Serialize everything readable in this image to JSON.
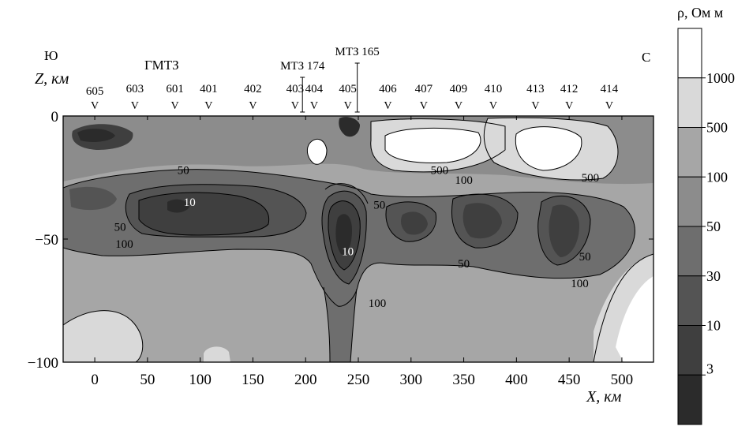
{
  "chart_data": {
    "type": "heatmap",
    "title": "",
    "xlabel": "X, км",
    "ylabel": "Z, км",
    "xlim": [
      -30,
      530
    ],
    "ylim": [
      -100,
      0
    ],
    "x_ticks": [
      0,
      50,
      100,
      150,
      200,
      250,
      300,
      350,
      400,
      450,
      500
    ],
    "y_ticks": [
      0,
      -50,
      -100
    ],
    "direction_left": "Ю",
    "direction_right": "С",
    "profile_label": "ГМТЗ",
    "stations": [
      {
        "label": "605",
        "x": 0
      },
      {
        "label": "603",
        "x": 38
      },
      {
        "label": "601",
        "x": 76
      },
      {
        "label": "401",
        "x": 108
      },
      {
        "label": "402",
        "x": 150
      },
      {
        "label": "403",
        "x": 190
      },
      {
        "label": "404",
        "x": 208
      },
      {
        "label": "405",
        "x": 240
      },
      {
        "label": "406",
        "x": 278
      },
      {
        "label": "407",
        "x": 312
      },
      {
        "label": "409",
        "x": 345
      },
      {
        "label": "410",
        "x": 378
      },
      {
        "label": "413",
        "x": 418
      },
      {
        "label": "412",
        "x": 450
      },
      {
        "label": "414",
        "x": 488
      }
    ],
    "special_stations": [
      {
        "label": "МТЗ 174",
        "x": 197
      },
      {
        "label": "МТЗ 165",
        "x": 249
      }
    ],
    "colorbar": {
      "title": "ρ, Ом м",
      "levels": [
        "3",
        "10",
        "30",
        "50",
        "100",
        "500",
        "1000"
      ],
      "colors": [
        "#2b2b2b",
        "#3f3f3f",
        "#545454",
        "#6e6e6e",
        "#8c8c8c",
        "#a6a6a6",
        "#d9d9d9",
        "#ffffff"
      ]
    },
    "contour_labels": [
      {
        "text": "10",
        "x": 90,
        "z": -35
      },
      {
        "text": "10",
        "x": 240,
        "z": -55
      },
      {
        "text": "50",
        "x": 84,
        "z": -22
      },
      {
        "text": "50",
        "x": 24,
        "z": -45
      },
      {
        "text": "100",
        "x": 28,
        "z": -52
      },
      {
        "text": "50",
        "x": 270,
        "z": -36
      },
      {
        "text": "500",
        "x": 327,
        "z": -22
      },
      {
        "text": "100",
        "x": 350,
        "z": -26
      },
      {
        "text": "500",
        "x": 470,
        "z": -25
      },
      {
        "text": "50",
        "x": 350,
        "z": -60
      },
      {
        "text": "100",
        "x": 268,
        "z": -76
      },
      {
        "text": "50",
        "x": 465,
        "z": -57
      },
      {
        "text": "100",
        "x": 460,
        "z": -68
      }
    ]
  }
}
